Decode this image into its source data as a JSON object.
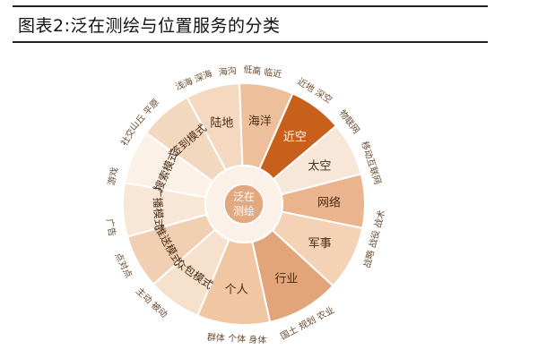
{
  "header": {
    "title": "图表2:泛在测绘与位置服务的分类"
  },
  "center": {
    "line1": "泛在",
    "line2": "测绘"
  },
  "categories": [
    {
      "label": "陆地",
      "span": 1.0,
      "dark": false,
      "color": "#f4d8c0"
    },
    {
      "label": "海洋",
      "span": 1.0,
      "dark": false,
      "color": "#edc09b"
    },
    {
      "label": "近空",
      "span": 1.0,
      "dark": true,
      "color": "#c85f1b"
    },
    {
      "label": "太空",
      "span": 1.0,
      "dark": false,
      "color": "#f7e7d8"
    },
    {
      "label": "网络",
      "span": 1.0,
      "dark": false,
      "color": "#eab58e"
    },
    {
      "label": "军事",
      "span": 1.2,
      "dark": false,
      "color": "#f3d2b6"
    },
    {
      "label": "行业",
      "span": 1.35,
      "dark": false,
      "color": "#e2a57a"
    },
    {
      "label": "个人",
      "span": 1.35,
      "dark": false,
      "color": "#f0c6a3"
    },
    {
      "label": "众包模式",
      "span": 1.0,
      "dark": false,
      "color": "#f6e1cd"
    },
    {
      "label": "推送模式",
      "span": 1.0,
      "dark": false,
      "color": "#f1cfb2"
    },
    {
      "label": "广播模式",
      "span": 1.0,
      "dark": false,
      "color": "#f8e7d6"
    },
    {
      "label": "搜索模式",
      "span": 1.0,
      "dark": false,
      "color": "#fbf1e7"
    },
    {
      "label": "签到模式",
      "span": 1.0,
      "dark": false,
      "color": "#f3d8c0"
    }
  ],
  "outer_labels": [
    {
      "text": "山丘 平原",
      "angle": -138,
      "r": 150
    },
    {
      "text": "浅海 深海",
      "angle": -112,
      "r": 150
    },
    {
      "text": "海沟",
      "angle": -97,
      "r": 150
    },
    {
      "text": "低高 临近",
      "angle": -82,
      "r": 150
    },
    {
      "text": "近地 深空",
      "angle": -58,
      "r": 150
    },
    {
      "text": "物联网",
      "angle": -38,
      "r": 150
    },
    {
      "text": "移动互联网",
      "angle": -18,
      "r": 150
    },
    {
      "text": "战略 战役 战术",
      "angle": 15,
      "r": 150
    },
    {
      "text": "国土 规划 农业",
      "angle": 62,
      "r": 150
    },
    {
      "text": "群体 个体 身体",
      "angle": 93,
      "r": 150
    },
    {
      "text": "主动 被动",
      "angle": 133,
      "r": 150
    },
    {
      "text": "点对点",
      "angle": 153,
      "r": 150
    },
    {
      "text": "广告",
      "angle": 170,
      "r": 150
    },
    {
      "text": "游戏",
      "angle": -168,
      "r": 150
    },
    {
      "text": "社交",
      "angle": -150,
      "r": 150
    }
  ]
}
